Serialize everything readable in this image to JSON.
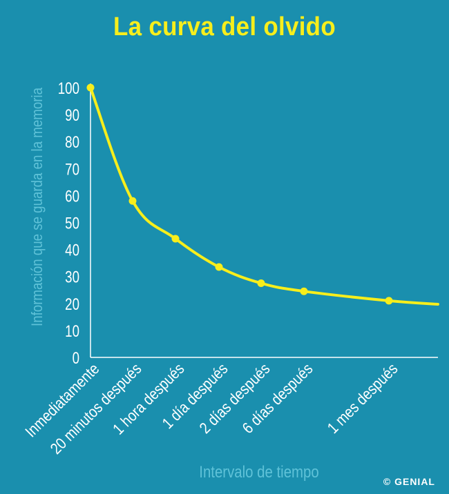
{
  "credit": "© GENIAL",
  "chart_data": {
    "type": "line",
    "title": "La curva del olvido",
    "xlabel": "Intervalo de tiempo",
    "ylabel": "Información que se guarda en la memoria",
    "ylim": [
      0,
      100
    ],
    "yticks": [
      0,
      10,
      20,
      30,
      40,
      50,
      60,
      70,
      80,
      90,
      100
    ],
    "categories": [
      "Inmediatamente",
      "20 minutos después",
      "1 hora después",
      "1 día después",
      "2 días después",
      "6 días después",
      "1 mes después"
    ],
    "values": [
      100,
      58,
      44,
      33.5,
      27.5,
      24.5,
      21
    ],
    "grid": false,
    "legend": "none",
    "colors": {
      "background": "#1a8fae",
      "title": "#f7ee1c",
      "line": "#f7ee1c",
      "tick_text": "#ffffff",
      "axis_label": "#5fc2d8",
      "axis_line": "#ffffff"
    }
  }
}
